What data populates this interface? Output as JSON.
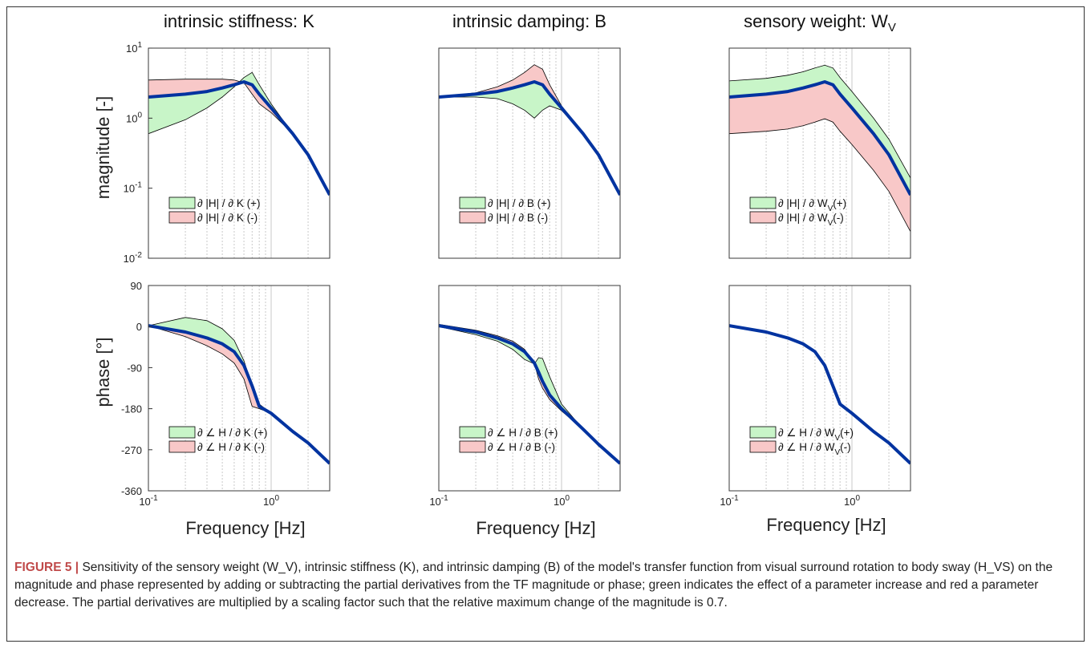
{
  "figure": {
    "caption_label": "FIGURE 5 |",
    "caption_text": "Sensitivity of the sensory weight (W_V), intrinsic stiffness (K), and intrinsic damping (B) of the model's transfer function from visual surround rotation to body sway (H_VS) on the magnitude and phase represented by adding or subtracting the partial derivatives from the TF magnitude or phase; green indicates the effect of a parameter increase and red a parameter decrease. The partial derivatives are multiplied by a scaling factor such that the relative maximum change of the magnitude is 0.7."
  },
  "colors": {
    "nominal": "#0033a0",
    "increase": "#c8f5c8",
    "decrease": "#f8c8c8",
    "outline": "#000000"
  },
  "axis_text": {
    "magnitude_ylabel": "magnitude [-]",
    "phase_ylabel": "phase [°]",
    "xlabel": "Frequency [Hz]",
    "mag_ticks": [
      "10^1",
      "10^0",
      "10^-1",
      "10^-2"
    ],
    "phase_ticks": [
      "90",
      "0",
      "-90",
      "-180",
      "-270",
      "-360"
    ],
    "freq_ticks": [
      "10^-1",
      "10^0"
    ]
  },
  "chart_data": [
    {
      "type": "area",
      "panel": "magnitude-stiffness",
      "title": "intrinsic stiffness: K",
      "xscale": "log",
      "yscale": "log",
      "xlim": [
        0.1,
        3
      ],
      "ylim": [
        0.01,
        10
      ],
      "x": [
        0.1,
        0.2,
        0.3,
        0.4,
        0.5,
        0.6,
        0.7,
        0.8,
        1.0,
        1.5,
        2.0,
        3.0
      ],
      "series": [
        {
          "name": "∂|H|/∂K(+)",
          "values": [
            0.6,
            0.95,
            1.4,
            2.0,
            2.8,
            3.8,
            4.5,
            3.0,
            1.6,
            0.6,
            0.3,
            0.08
          ]
        },
        {
          "name": "nominal",
          "values": [
            2.0,
            2.2,
            2.4,
            2.7,
            3.0,
            3.3,
            3.0,
            2.2,
            1.4,
            0.6,
            0.3,
            0.08
          ]
        },
        {
          "name": "∂|H|/∂K(-)",
          "values": [
            3.5,
            3.6,
            3.6,
            3.6,
            3.5,
            3.2,
            2.2,
            1.6,
            1.2,
            0.6,
            0.3,
            0.08
          ]
        }
      ],
      "legend": [
        "∂ |H| / ∂ K (+)",
        "∂ |H| / ∂ K (-)"
      ]
    },
    {
      "type": "area",
      "panel": "magnitude-damping",
      "title": "intrinsic damping: B",
      "xscale": "log",
      "yscale": "log",
      "xlim": [
        0.1,
        3
      ],
      "ylim": [
        0.01,
        10
      ],
      "x": [
        0.1,
        0.2,
        0.3,
        0.4,
        0.5,
        0.6,
        0.7,
        0.8,
        1.0,
        1.5,
        2.0,
        3.0
      ],
      "series": [
        {
          "name": "∂|H|/∂B(+)",
          "values": [
            2.0,
            2.0,
            1.9,
            1.6,
            1.3,
            1.0,
            1.3,
            1.5,
            1.3,
            0.6,
            0.3,
            0.08
          ]
        },
        {
          "name": "nominal",
          "values": [
            2.0,
            2.2,
            2.4,
            2.7,
            3.0,
            3.3,
            3.0,
            2.2,
            1.4,
            0.6,
            0.3,
            0.08
          ]
        },
        {
          "name": "∂|H|/∂B(-)",
          "values": [
            2.0,
            2.3,
            2.8,
            3.5,
            4.5,
            5.8,
            5.0,
            3.0,
            1.5,
            0.6,
            0.3,
            0.08
          ]
        }
      ],
      "legend": [
        "∂ |H| / ∂ B (+)",
        "∂ |H| / ∂ B (-)"
      ]
    },
    {
      "type": "area",
      "panel": "magnitude-sensory-weight",
      "title": "sensory weight: W_V",
      "xscale": "log",
      "yscale": "log",
      "xlim": [
        0.1,
        3
      ],
      "ylim": [
        0.01,
        10
      ],
      "x": [
        0.1,
        0.2,
        0.3,
        0.4,
        0.5,
        0.6,
        0.7,
        0.8,
        1.0,
        1.5,
        2.0,
        3.0
      ],
      "series": [
        {
          "name": "∂|H|/∂W_V(+)",
          "values": [
            3.4,
            3.7,
            4.1,
            4.6,
            5.2,
            5.7,
            5.2,
            3.8,
            2.4,
            1.0,
            0.5,
            0.14
          ]
        },
        {
          "name": "nominal",
          "values": [
            2.0,
            2.2,
            2.4,
            2.7,
            3.0,
            3.3,
            3.0,
            2.2,
            1.4,
            0.6,
            0.3,
            0.08
          ]
        },
        {
          "name": "∂|H|/∂W_V(-)",
          "values": [
            0.6,
            0.65,
            0.7,
            0.78,
            0.88,
            0.98,
            0.88,
            0.65,
            0.42,
            0.18,
            0.09,
            0.024
          ]
        }
      ],
      "legend": [
        "∂ |H| / ∂ W_V(+)",
        "∂ |H| / ∂ W_V(-)"
      ]
    },
    {
      "type": "area",
      "panel": "phase-stiffness",
      "title": "",
      "xscale": "log",
      "xlim": [
        0.1,
        3
      ],
      "ylim": [
        -360,
        90
      ],
      "x": [
        0.1,
        0.2,
        0.3,
        0.4,
        0.5,
        0.6,
        0.7,
        0.8,
        1.0,
        1.5,
        2.0,
        3.0
      ],
      "series": [
        {
          "name": "∂∠H/∂K(+)",
          "values": [
            2,
            20,
            13,
            -5,
            -30,
            -75,
            -130,
            -170,
            -190,
            -230,
            -255,
            -300
          ]
        },
        {
          "name": "nominal",
          "values": [
            2,
            -12,
            -25,
            -38,
            -55,
            -85,
            -130,
            -175,
            -190,
            -230,
            -255,
            -300
          ]
        },
        {
          "name": "∂∠H/∂K(-)",
          "values": [
            2,
            -22,
            -42,
            -60,
            -80,
            -115,
            -175,
            -180,
            -190,
            -230,
            -255,
            -300
          ]
        }
      ],
      "legend": [
        "∂ ∠ H / ∂ K (+)",
        "∂ ∠ H / ∂ K (-)"
      ]
    },
    {
      "type": "area",
      "panel": "phase-damping",
      "title": "",
      "xscale": "log",
      "xlim": [
        0.1,
        3
      ],
      "ylim": [
        -360,
        90
      ],
      "x": [
        0.1,
        0.2,
        0.3,
        0.4,
        0.5,
        0.6,
        0.65,
        0.7,
        0.8,
        1.0,
        1.5,
        2.0,
        3.0
      ],
      "series": [
        {
          "name": "∂∠H/∂B(+)",
          "values": [
            0,
            -18,
            -32,
            -50,
            -72,
            -82,
            -68,
            -70,
            -110,
            -170,
            -225,
            -262,
            -300
          ]
        },
        {
          "name": "nominal",
          "values": [
            2,
            -12,
            -25,
            -38,
            -55,
            -80,
            -100,
            -120,
            -150,
            -180,
            -225,
            -258,
            -300
          ]
        },
        {
          "name": "∂∠H/∂B(-)",
          "values": [
            5,
            -8,
            -20,
            -32,
            -50,
            -80,
            -115,
            -135,
            -160,
            -185,
            -225,
            -255,
            -300
          ]
        }
      ],
      "legend": [
        "∂ ∠ H / ∂ B (+)",
        "∂ ∠ H / ∂ B (-)"
      ]
    },
    {
      "type": "line",
      "panel": "phase-sensory-weight",
      "title": "",
      "xscale": "log",
      "xlim": [
        0.1,
        3
      ],
      "ylim": [
        -360,
        90
      ],
      "x": [
        0.1,
        0.2,
        0.3,
        0.4,
        0.5,
        0.6,
        0.7,
        0.8,
        1.0,
        1.5,
        2.0,
        3.0
      ],
      "series": [
        {
          "name": "nominal",
          "values": [
            2,
            -12,
            -25,
            -38,
            -55,
            -85,
            -130,
            -170,
            -190,
            -230,
            -255,
            -300
          ]
        }
      ],
      "legend": [
        "∂ ∠ H / ∂ W_V(+)",
        "∂ ∠ H / ∂ W_V(-)"
      ]
    }
  ]
}
